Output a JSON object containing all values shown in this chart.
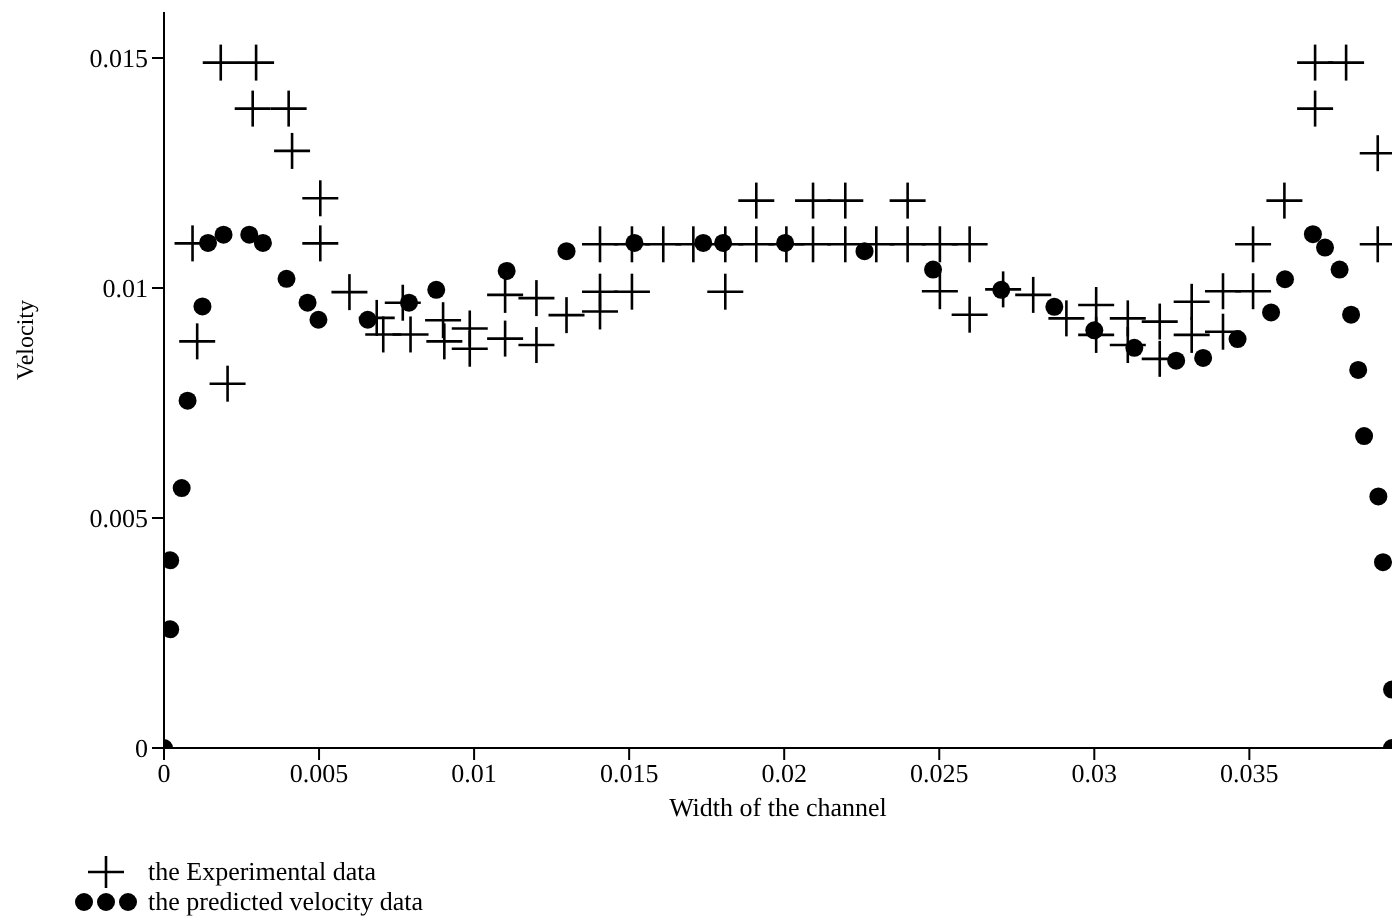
{
  "chart_data": {
    "type": "scatter",
    "xlabel": "Width of the channel",
    "ylabel": "Velocity",
    "xlim": [
      0,
      0.0396
    ],
    "ylim": [
      0,
      0.016
    ],
    "xticks": [
      0,
      0.005,
      0.01,
      0.015,
      0.02,
      0.025,
      0.03,
      0.035
    ],
    "yticks": [
      0,
      0.005,
      0.01,
      0.015
    ],
    "grid": false,
    "legend": "bottom left",
    "series": [
      {
        "name": "the Experimental data",
        "color": "#000000",
        "marker": "cross",
        "x": [
          0.00092,
          0.00107,
          0.00205,
          0.00183,
          0.00297,
          0.00286,
          0.00402,
          0.00413,
          0.00504,
          0.00504,
          0.00598,
          0.00686,
          0.00707,
          0.00795,
          0.0077,
          0.009,
          0.00904,
          0.00986,
          0.00986,
          0.011,
          0.011,
          0.01201,
          0.01201,
          0.01298,
          0.01406,
          0.01406,
          0.01509,
          0.01406,
          0.01509,
          0.0161,
          0.01707,
          0.0181,
          0.0181,
          0.0191,
          0.0191,
          0.02007,
          0.02093,
          0.02093,
          0.02197,
          0.02197,
          0.02297,
          0.02398,
          0.02398,
          0.02502,
          0.02502,
          0.02598,
          0.02598,
          0.02706,
          0.02803,
          0.0291,
          0.03006,
          0.03006,
          0.03108,
          0.03108,
          0.03211,
          0.03211,
          0.03314,
          0.03314,
          0.03415,
          0.03415,
          0.03512,
          0.03512,
          0.03613,
          0.03712,
          0.03812,
          0.03712,
          0.03914,
          0.03914
        ],
        "values": [
          0.01097,
          0.00884,
          0.00792,
          0.0149,
          0.0149,
          0.0139,
          0.0139,
          0.01298,
          0.01195,
          0.01097,
          0.00991,
          0.00935,
          0.00899,
          0.00899,
          0.00968,
          0.0093,
          0.00884,
          0.00912,
          0.00868,
          0.00985,
          0.0089,
          0.00978,
          0.00876,
          0.00941,
          0.00992,
          0.00949,
          0.00992,
          0.01095,
          0.01095,
          0.01095,
          0.01095,
          0.01095,
          0.00992,
          0.01095,
          0.0119,
          0.01095,
          0.0119,
          0.01095,
          0.0119,
          0.01095,
          0.01095,
          0.0119,
          0.01095,
          0.01095,
          0.00993,
          0.01095,
          0.00942,
          0.00997,
          0.00985,
          0.00934,
          0.00963,
          0.00898,
          0.00934,
          0.00876,
          0.00927,
          0.00846,
          0.0097,
          0.00898,
          0.00993,
          0.00905,
          0.01095,
          0.00993,
          0.0119,
          0.0149,
          0.0149,
          0.0139,
          0.01293,
          0.01095
        ]
      },
      {
        "name": "the predicted velocity data",
        "color": "#000000",
        "marker": "circle",
        "x": [
          0,
          0.0002,
          0.0002,
          0.00057,
          0.00076,
          0.00124,
          0.00142,
          0.00192,
          0.00275,
          0.00319,
          0.00395,
          0.00463,
          0.00498,
          0.00657,
          0.0079,
          0.00878,
          0.01105,
          0.01298,
          0.01517,
          0.01739,
          0.01803,
          0.02003,
          0.02259,
          0.0248,
          0.027,
          0.02871,
          0.03,
          0.03129,
          0.03264,
          0.03351,
          0.03462,
          0.0357,
          0.03615,
          0.03705,
          0.03744,
          0.03791,
          0.03828,
          0.03851,
          0.0387,
          0.03916,
          0.03931,
          0.0396,
          0.0396
        ],
        "values": [
          0,
          0.00258,
          0.00408,
          0.00565,
          0.00755,
          0.0096,
          0.01098,
          0.01116,
          0.01116,
          0.01098,
          0.0102,
          0.00968,
          0.00931,
          0.00931,
          0.00968,
          0.00996,
          0.01037,
          0.0108,
          0.01098,
          0.01098,
          0.01098,
          0.01098,
          0.0108,
          0.0104,
          0.00996,
          0.00959,
          0.00908,
          0.0087,
          0.00842,
          0.00848,
          0.00889,
          0.00947,
          0.01019,
          0.01117,
          0.01088,
          0.0104,
          0.00942,
          0.00822,
          0.00678,
          0.00547,
          0.00404,
          0.00127,
          0
        ]
      }
    ]
  }
}
